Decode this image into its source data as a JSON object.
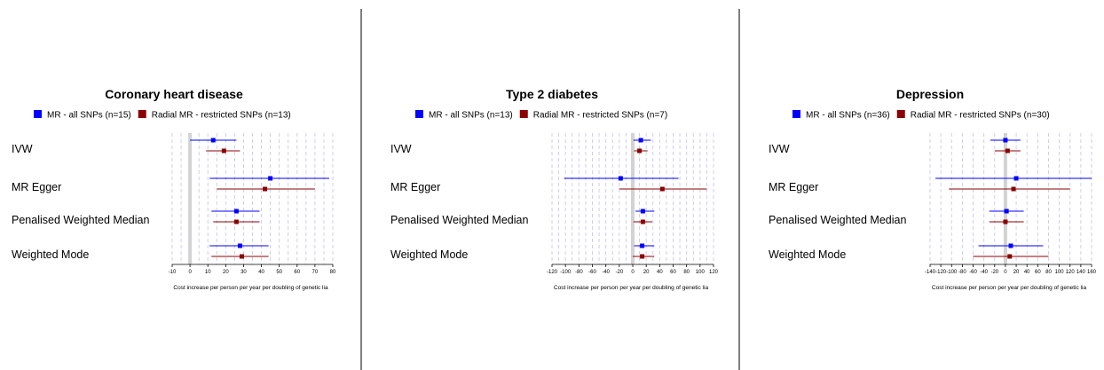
{
  "colors": {
    "all_snps": "#0000ff",
    "restricted": "#8b0000",
    "grid": "#c8c8f0",
    "zero_band": "#d3d3d3",
    "divider": "#555555"
  },
  "chart_data": [
    {
      "type": "forest",
      "title": "Coronary heart disease",
      "xlabel": "Cost increase per person per year per doubling of genetic lia",
      "xlim": [
        -10,
        80
      ],
      "ticks": [
        -10,
        0,
        10,
        20,
        30,
        40,
        50,
        60,
        70,
        80
      ],
      "grid_step": 5,
      "legend": [
        "MR - all SNPs (n=15)",
        "Radial MR - restricted SNPs (n=13)"
      ],
      "methods": [
        "IVW",
        "MR Egger",
        "Penalised Weighted Median",
        "Weighted Mode"
      ],
      "series": [
        {
          "key": "all_snps",
          "estimates": [
            13,
            45,
            26,
            28
          ],
          "lower": [
            0,
            11,
            12,
            11
          ],
          "upper": [
            26,
            78,
            39,
            44
          ]
        },
        {
          "key": "restricted",
          "estimates": [
            19,
            42,
            26,
            29
          ],
          "lower": [
            9,
            15,
            13,
            12
          ],
          "upper": [
            28,
            70,
            39,
            44
          ]
        }
      ]
    },
    {
      "type": "forest",
      "title": "Type 2 diabetes",
      "xlabel": "Cost increase per person per year per doubling of genetic lia",
      "xlim": [
        -120,
        120
      ],
      "ticks": [
        -120,
        -100,
        -80,
        -60,
        -40,
        -20,
        0,
        20,
        40,
        60,
        80,
        100,
        120
      ],
      "grid_step": 10,
      "legend": [
        "MR - all SNPs (n=13)",
        "Radial MR - restricted SNPs (n=7)"
      ],
      "methods": [
        "IVW",
        "MR Egger",
        "Penalised Weighted Median",
        "Weighted Mode"
      ],
      "series": [
        {
          "key": "all_snps",
          "estimates": [
            12,
            -18,
            15,
            14
          ],
          "lower": [
            1,
            -102,
            4,
            2
          ],
          "upper": [
            27,
            68,
            32,
            32
          ]
        },
        {
          "key": "restricted",
          "estimates": [
            10,
            44,
            15,
            14
          ],
          "lower": [
            2,
            -20,
            1,
            0
          ],
          "upper": [
            22,
            110,
            29,
            32
          ]
        }
      ]
    },
    {
      "type": "forest",
      "title": "Depression",
      "xlabel": "Cost increase per person per year per doubling of genetic lia",
      "xlim": [
        -140,
        160
      ],
      "ticks": [
        -140,
        -120,
        -100,
        -80,
        -60,
        -40,
        -20,
        0,
        20,
        40,
        60,
        80,
        100,
        120,
        140,
        160
      ],
      "grid_step": 20,
      "legend": [
        "MR - all SNPs (n=36)",
        "Radial MR - restricted SNPs (n=30)"
      ],
      "methods": [
        "IVW",
        "MR Egger",
        "Penalised Weighted Median",
        "Weighted Mode"
      ],
      "series": [
        {
          "key": "all_snps",
          "estimates": [
            0,
            20,
            2,
            10
          ],
          "lower": [
            -28,
            -130,
            -30,
            -50
          ],
          "upper": [
            28,
            160,
            34,
            70
          ]
        },
        {
          "key": "restricted",
          "estimates": [
            4,
            15,
            0,
            8
          ],
          "lower": [
            -20,
            -105,
            -30,
            -60
          ],
          "upper": [
            28,
            120,
            34,
            80
          ]
        }
      ]
    }
  ]
}
